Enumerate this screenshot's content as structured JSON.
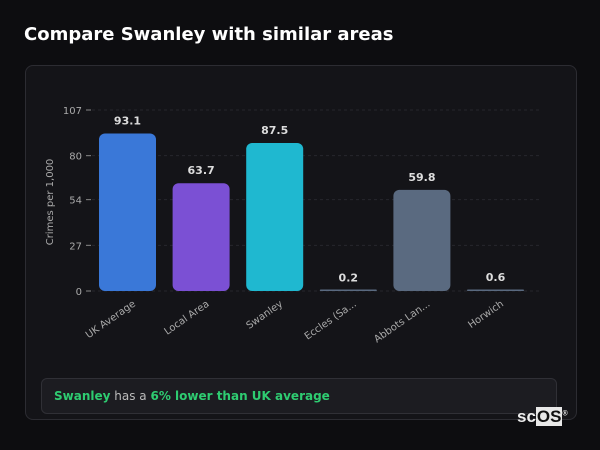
{
  "title": "Compare Swanley with similar areas",
  "chart_data": {
    "type": "bar",
    "categories": [
      "UK Average",
      "Local Area",
      "Swanley",
      "Eccles (Sa...",
      "Abbots Lan...",
      "Horwich"
    ],
    "values": [
      93.1,
      63.7,
      87.5,
      0.2,
      59.8,
      0.6
    ],
    "colors": [
      "#3a78d8",
      "#7b50d4",
      "#1fb8d0",
      "#5a6a80",
      "#5a6a80",
      "#5a6a80"
    ],
    "ylabel": "Crimes per 1,000",
    "yticks": [
      0,
      27,
      54,
      80,
      107
    ],
    "ylim": [
      0,
      107
    ],
    "grid": true
  },
  "note": {
    "area": "Swanley",
    "mid": " has a ",
    "highlight": "6% lower than UK average"
  },
  "logo": {
    "a": "sc",
    "b": "OS",
    "mark": "®"
  }
}
